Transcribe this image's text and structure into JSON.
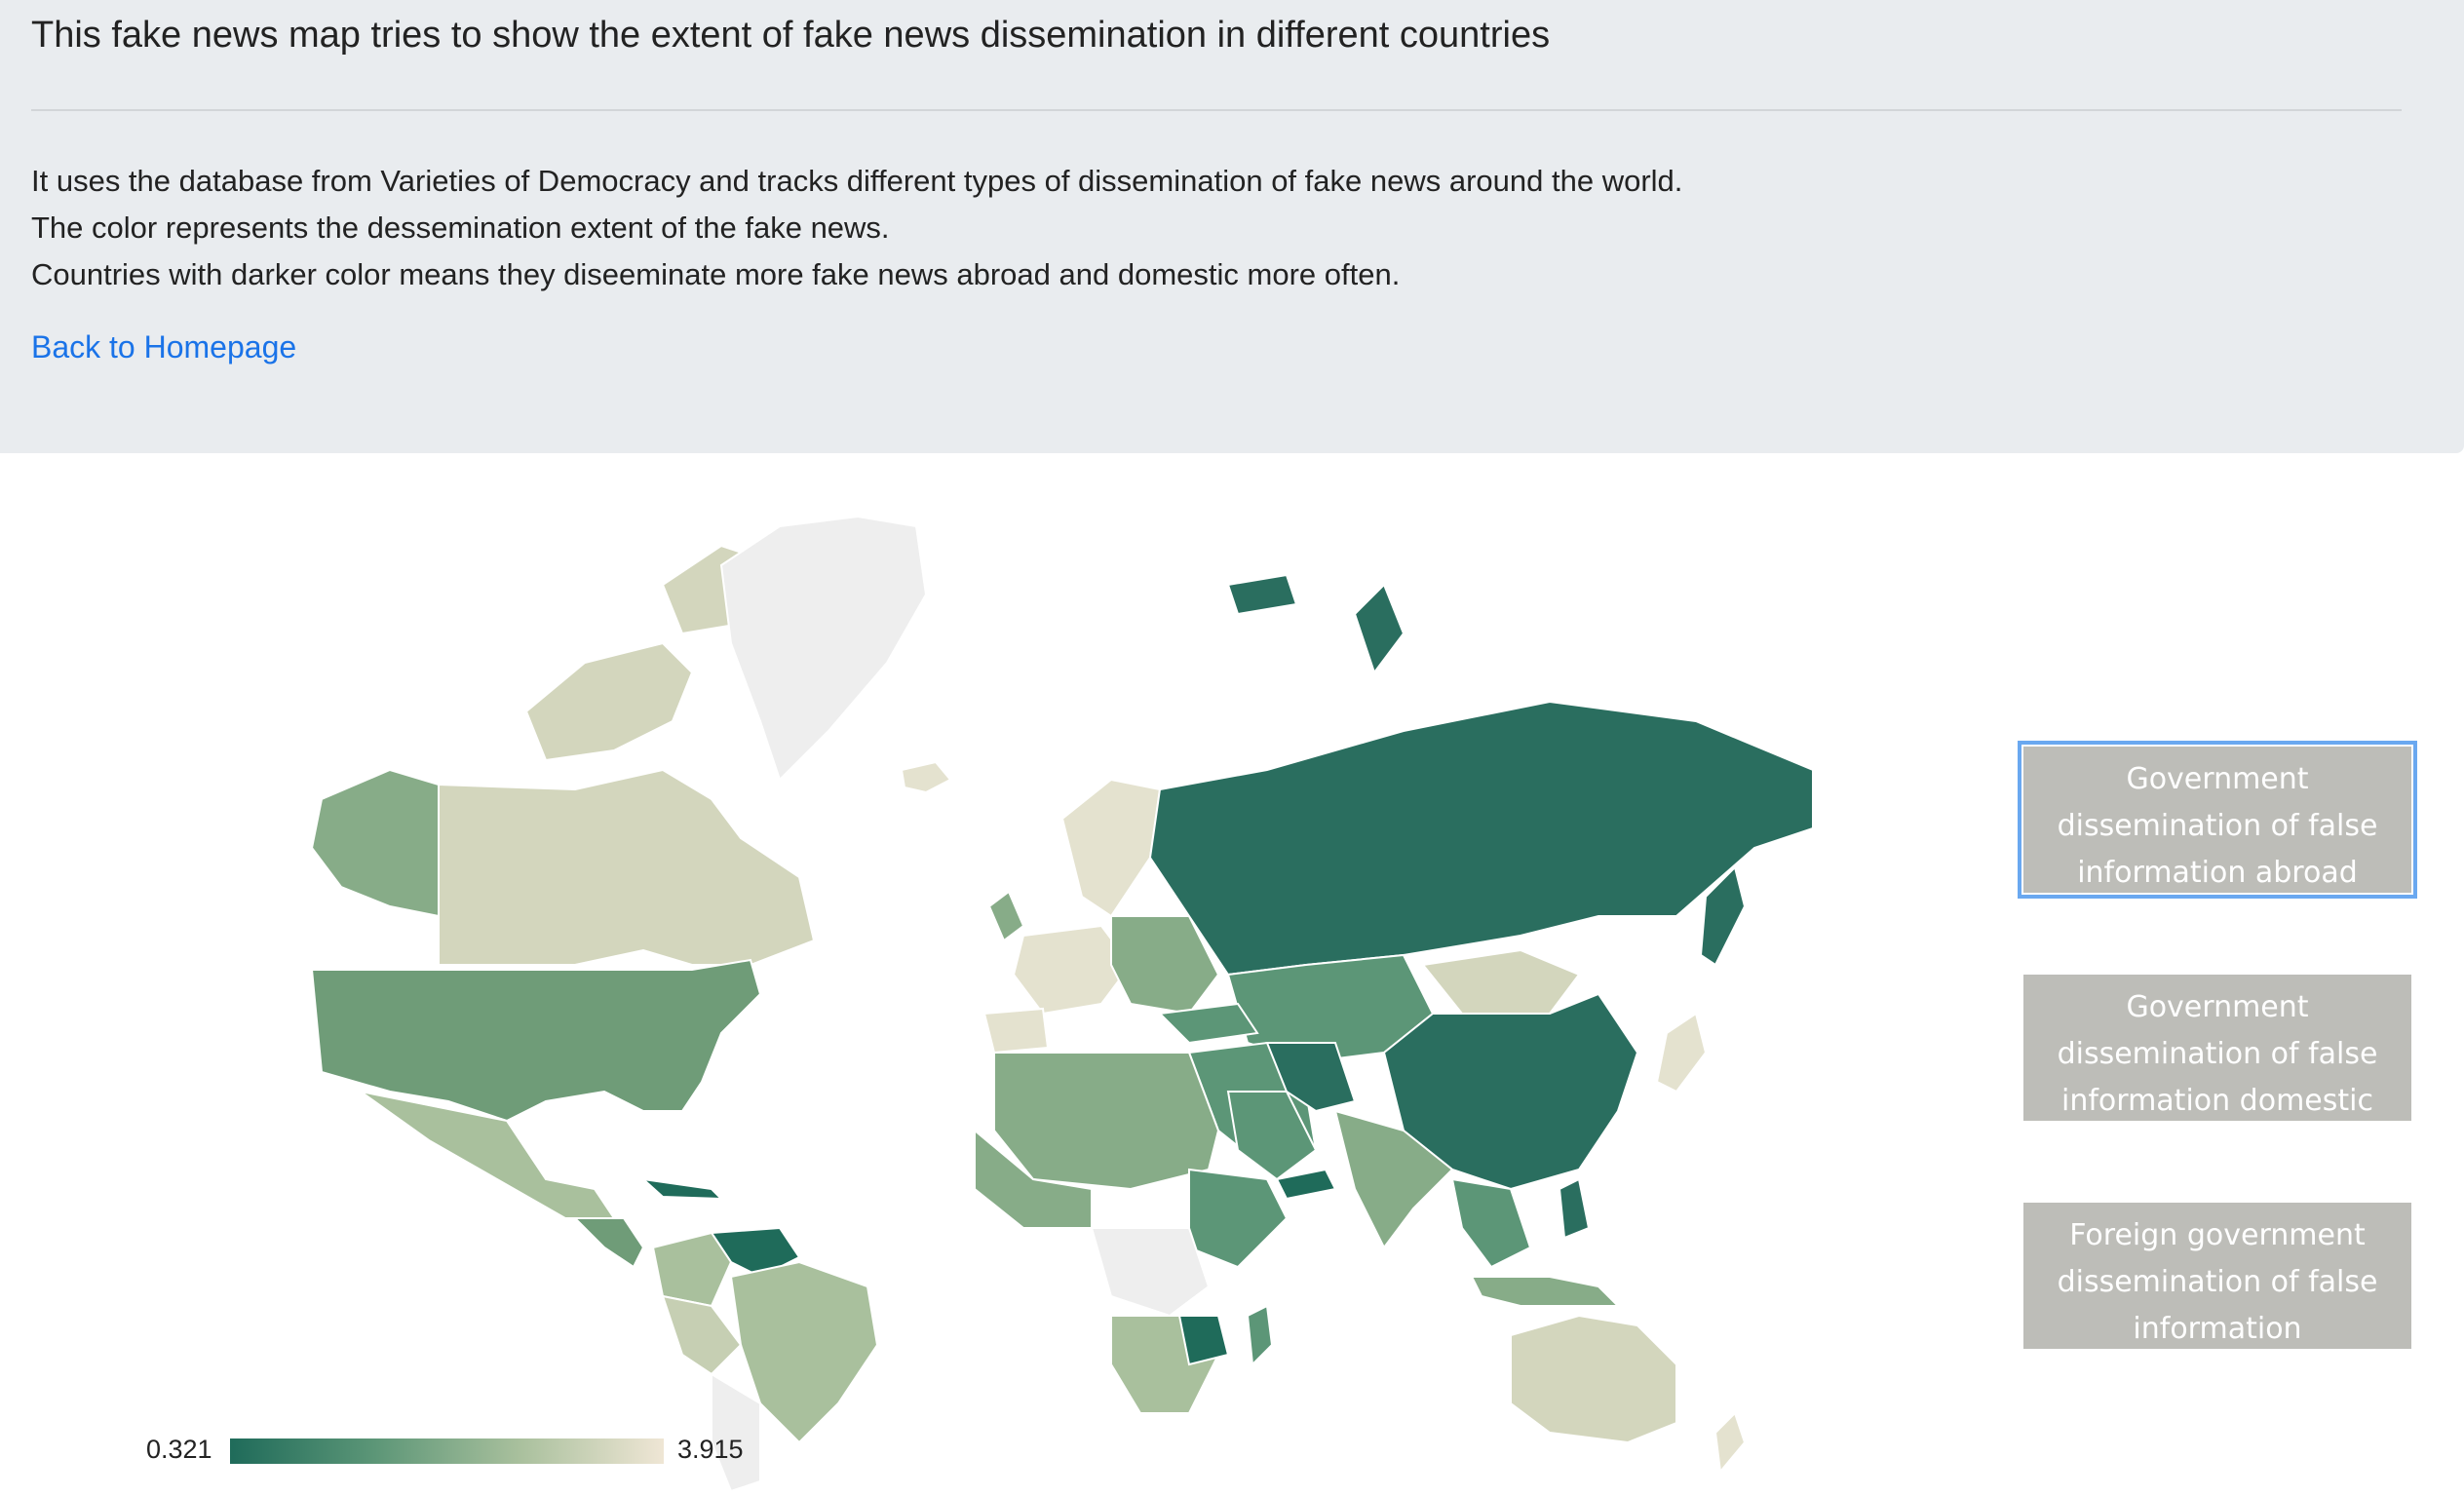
{
  "header": {
    "title": "This fake news map tries to show the extent of fake news dissemination in different countries",
    "description": [
      "It uses the database from Varieties of Democracy and tracks different types of dissemination of fake news around the world.",
      "The color represents the dessemination extent of the fake news.",
      "Countries with darker color means they diseeminate more fake news abroad and domestic more often."
    ],
    "back_link": "Back to Homepage"
  },
  "legend": {
    "min": "0.321",
    "max": "3.915",
    "colors": [
      "#1f6b5a",
      "#5c9677",
      "#a9c09d",
      "#efe6d5"
    ]
  },
  "controls": {
    "buttons": [
      "Government dissemination of false information abroad",
      "Government dissemination of false information domestic",
      "Foreign government dissemination of false information"
    ],
    "active_index": 0
  },
  "map": {
    "selected_measure": "Government dissemination of false information abroad",
    "no_data_color": "#eeeeee"
  }
}
